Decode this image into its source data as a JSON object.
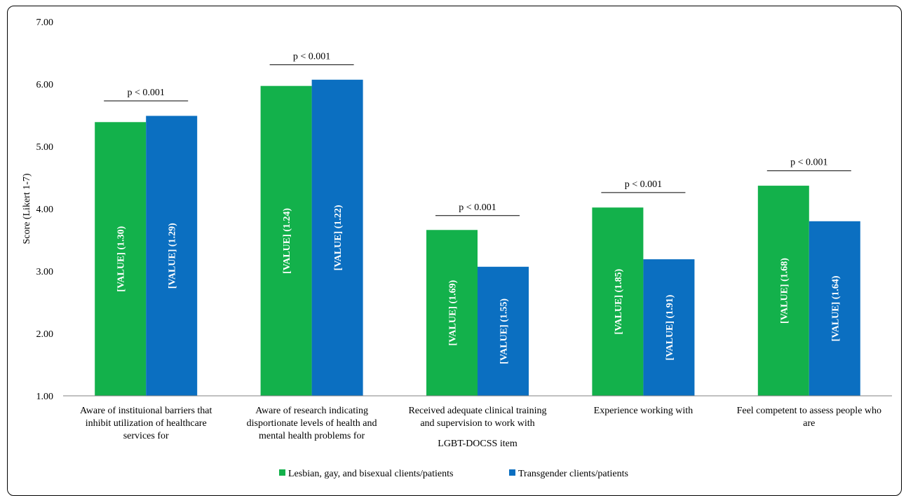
{
  "chart_data": {
    "type": "bar",
    "xlabel": "LGBT-DOCSS item",
    "ylabel": "Score (Likert 1-7)",
    "ylim": [
      1,
      7
    ],
    "yticks": [
      "1.00",
      "2.00",
      "3.00",
      "4.00",
      "5.00",
      "6.00",
      "7.00"
    ],
    "grid": false,
    "legend_position": "bottom",
    "categories": [
      [
        "Aware of instituional barriers that",
        "inhibit utilization of healthcare",
        "services for"
      ],
      [
        "Aware of research indicating",
        "disportionate levels of health and",
        "mental health problems for"
      ],
      [
        "Received adequate clinical training",
        "and supervision to work with"
      ],
      [
        "Experience working with"
      ],
      [
        "Feel competent to assess people who",
        "are"
      ]
    ],
    "series": [
      {
        "name": "Lesbian, gay, and bisexual clients/patients",
        "color": "#13b14b",
        "values": [
          5.39,
          5.97,
          3.66,
          4.02,
          4.37
        ],
        "labels": [
          "[VALUE] (1.30)",
          "[VALUE] (1.24)",
          "[VALUE] (1.69)",
          "[VALUE] (1.85)",
          "[VALUE] (1.68)"
        ]
      },
      {
        "name": "Transgender clients/patients",
        "color": "#0b6fc1",
        "values": [
          5.49,
          6.07,
          3.07,
          3.19,
          3.8
        ],
        "labels": [
          "[VALUE] (1.29)",
          "[VALUE] (1.22)",
          "[VALUE] (1.55)",
          "[VALUE] (1.91)",
          "[VALUE] (1.64)"
        ]
      }
    ],
    "annotations": [
      {
        "category": 0,
        "text": "p < 0.001",
        "y": 5.73
      },
      {
        "category": 1,
        "text": "p < 0.001",
        "y": 6.31
      },
      {
        "category": 2,
        "text": "p < 0.001",
        "y": 3.89
      },
      {
        "category": 3,
        "text": "p < 0.001",
        "y": 4.26
      },
      {
        "category": 4,
        "text": "p < 0.001",
        "y": 4.61
      }
    ]
  }
}
